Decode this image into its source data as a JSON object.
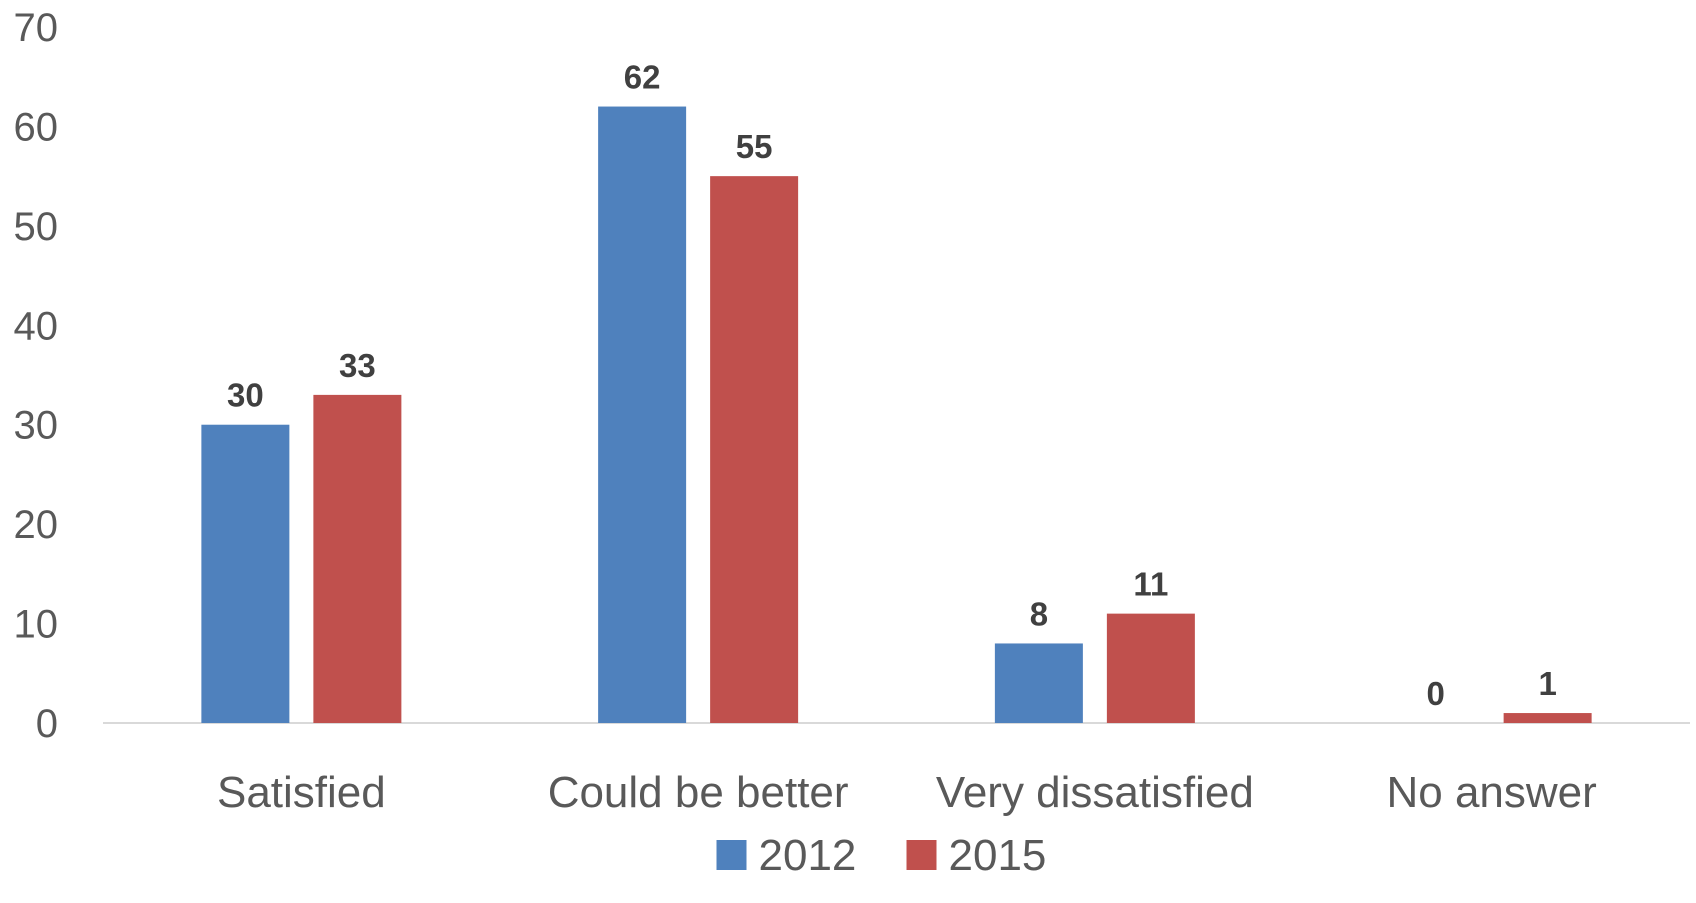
{
  "chart_data": {
    "type": "bar",
    "title": "",
    "xlabel": "",
    "ylabel": "",
    "categories": [
      "Satisfied",
      "Could be better",
      "Very dissatisfied",
      "No answer"
    ],
    "series": [
      {
        "name": "2012",
        "values": [
          30,
          62,
          8,
          0
        ],
        "color": "#4F81BD"
      },
      {
        "name": "2015",
        "values": [
          33,
          55,
          11,
          1
        ],
        "color": "#C0504D"
      }
    ],
    "ylim": [
      0,
      70
    ],
    "yticks": [
      0,
      10,
      20,
      30,
      40,
      50,
      60,
      70
    ],
    "grid": false,
    "data_labels": true,
    "legend_position": "bottom"
  }
}
